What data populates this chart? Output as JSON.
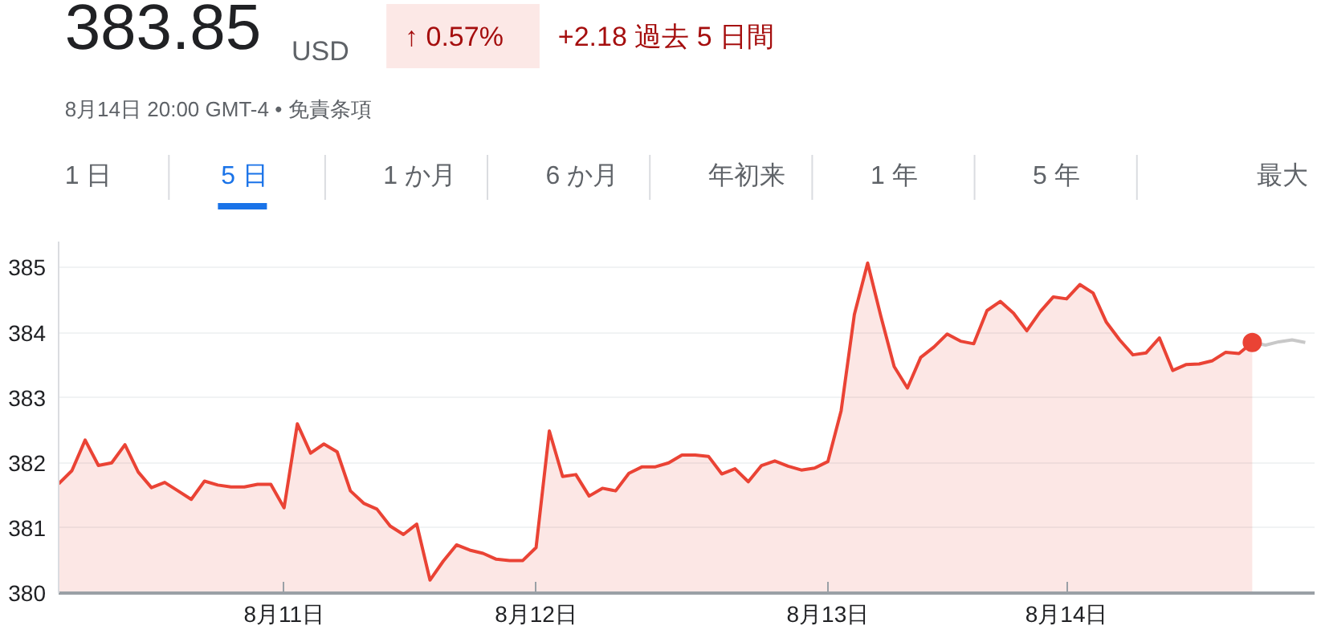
{
  "chart_data": {
    "type": "area",
    "title": "383.85",
    "subtitle": "8月14日 20:00 GMT-4 • 免責条項",
    "annotations": [
      "USD",
      "↑ 0.57%",
      "+2.18 過去 5 日間",
      "1 日",
      "5 日",
      "1 か月",
      "6 か月",
      "年初来",
      "1 年",
      "5 年",
      "最大"
    ],
    "categories": [
      null,
      null,
      null,
      null,
      null,
      null,
      null,
      null,
      null,
      null,
      null,
      null,
      null,
      null,
      null,
      null,
      null,
      "8月11日",
      null,
      null,
      null,
      null,
      null,
      null,
      null,
      null,
      null,
      null,
      null,
      null,
      null,
      null,
      null,
      null,
      null,
      null,
      "8月12日",
      null,
      null,
      null,
      null,
      null,
      null,
      null,
      null,
      null,
      null,
      null,
      null,
      null,
      null,
      null,
      null,
      null,
      null,
      null,
      null,
      null,
      "8月13日",
      null,
      null,
      null,
      null,
      null,
      null,
      null,
      null,
      null,
      null,
      null,
      null,
      null,
      null,
      null,
      null,
      null,
      "8月14日",
      null,
      null,
      null,
      null,
      null,
      null,
      null,
      null,
      null,
      null,
      null,
      null,
      null,
      null,
      null,
      null,
      null,
      null
    ],
    "ylim": [
      380,
      385.4
    ],
    "yticks": [
      380,
      381,
      382,
      383,
      384,
      385
    ],
    "grid": "y",
    "series": [
      {
        "color": "#ea4335",
        "values": [
          381.68,
          381.88,
          382.35,
          381.96,
          382.0,
          382.28,
          381.86,
          381.62,
          381.7,
          381.57,
          381.44,
          381.72,
          381.66,
          381.63,
          381.63,
          381.67,
          381.67,
          381.31,
          382.6,
          382.15,
          382.29,
          382.17,
          381.57,
          381.38,
          381.29,
          381.03,
          380.9,
          381.06,
          380.2,
          380.49,
          380.74,
          380.66,
          380.61,
          380.52,
          380.5,
          380.5,
          380.7,
          382.49,
          381.79,
          381.82,
          381.49,
          381.61,
          381.57,
          381.84,
          381.94,
          381.94,
          382.0,
          382.12,
          382.12,
          382.1,
          381.83,
          381.91,
          381.71,
          381.96,
          382.03,
          381.95,
          381.89,
          381.92,
          382.02,
          382.8,
          384.28,
          385.07,
          384.25,
          383.48,
          383.15,
          383.62,
          383.78,
          383.98,
          383.87,
          383.83,
          384.34,
          384.48,
          384.3,
          384.03,
          384.32,
          384.55,
          384.52,
          384.74,
          384.61,
          384.16,
          383.89,
          383.66,
          383.69,
          383.92,
          383.42,
          383.51,
          383.52,
          383.57,
          383.7,
          383.68,
          383.85,
          null,
          null,
          null,
          null
        ]
      },
      {
        "type": "line",
        "color": "#c8c8c8",
        "values": [
          null,
          null,
          null,
          null,
          null,
          null,
          null,
          null,
          null,
          null,
          null,
          null,
          null,
          null,
          null,
          null,
          null,
          null,
          null,
          null,
          null,
          null,
          null,
          null,
          null,
          null,
          null,
          null,
          null,
          null,
          null,
          null,
          null,
          null,
          null,
          null,
          null,
          null,
          null,
          null,
          null,
          null,
          null,
          null,
          null,
          null,
          null,
          null,
          null,
          null,
          null,
          null,
          null,
          null,
          null,
          null,
          null,
          null,
          null,
          null,
          null,
          null,
          null,
          null,
          null,
          null,
          null,
          null,
          null,
          null,
          null,
          null,
          null,
          null,
          null,
          null,
          null,
          null,
          null,
          null,
          null,
          null,
          null,
          null,
          null,
          null,
          null,
          null,
          null,
          null,
          383.85,
          383.81,
          383.86,
          383.89,
          383.85
        ]
      },
      {
        "type": "scatter",
        "color": "#ea4335",
        "marker": "circle",
        "values": [
          null,
          null,
          null,
          null,
          null,
          null,
          null,
          null,
          null,
          null,
          null,
          null,
          null,
          null,
          null,
          null,
          null,
          null,
          null,
          null,
          null,
          null,
          null,
          null,
          null,
          null,
          null,
          null,
          null,
          null,
          null,
          null,
          null,
          null,
          null,
          null,
          null,
          null,
          null,
          null,
          null,
          null,
          null,
          null,
          null,
          null,
          null,
          null,
          null,
          null,
          null,
          null,
          null,
          null,
          null,
          null,
          null,
          null,
          null,
          null,
          null,
          null,
          null,
          null,
          null,
          null,
          null,
          null,
          null,
          null,
          null,
          null,
          null,
          null,
          null,
          null,
          null,
          null,
          null,
          null,
          null,
          null,
          null,
          null,
          null,
          null,
          null,
          null,
          null,
          null,
          383.85,
          null,
          null,
          null,
          null
        ]
      }
    ]
  }
}
